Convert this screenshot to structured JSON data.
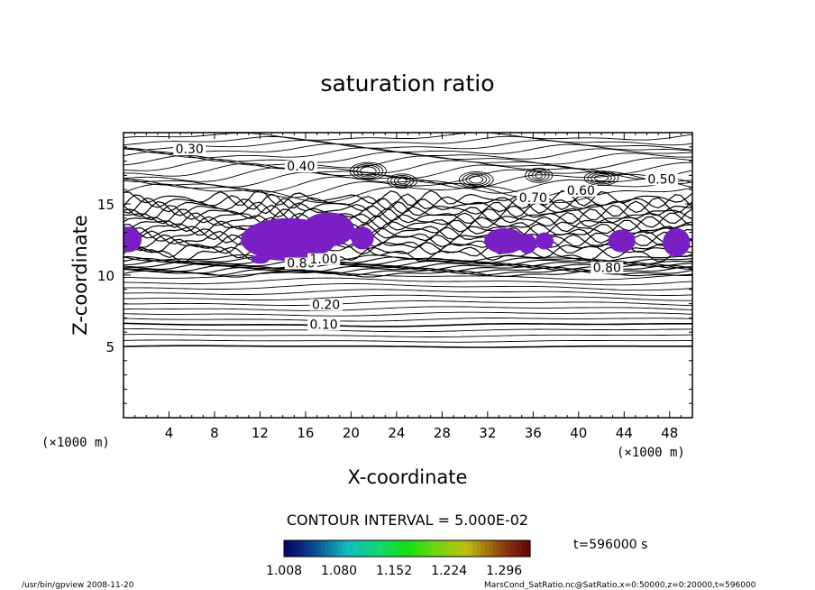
{
  "chart_data": {
    "type": "contour",
    "title": "saturation ratio",
    "xlabel": "X-coordinate",
    "ylabel": "Z-coordinate",
    "x_unit": "(×1000 m)",
    "y_unit": "(×1000 m)",
    "xlim": [
      0,
      50
    ],
    "ylim": [
      0,
      20
    ],
    "x_ticks": [
      4,
      8,
      12,
      16,
      20,
      24,
      28,
      32,
      36,
      40,
      44,
      48
    ],
    "y_ticks": [
      5,
      10,
      15
    ],
    "contour_interval_text": "CONTOUR INTERVAL = 5.000E-02",
    "contour_labels": [
      {
        "text": "0.30",
        "x": 5.8,
        "z": 18.6
      },
      {
        "text": "0.40",
        "x": 15.6,
        "z": 17.4
      },
      {
        "text": "0.50",
        "x": 47.3,
        "z": 16.5
      },
      {
        "text": "0.60",
        "x": 40.2,
        "z": 15.7
      },
      {
        "text": "0.70",
        "x": 36.0,
        "z": 15.2
      },
      {
        "text": "0.80",
        "x": 15.6,
        "z": 10.6
      },
      {
        "text": "0.80",
        "x": 42.5,
        "z": 10.3
      },
      {
        "text": "1.00",
        "x": 17.6,
        "z": 10.9
      },
      {
        "text": "0.20",
        "x": 17.8,
        "z": 7.7
      },
      {
        "text": "0.10",
        "x": 17.6,
        "z": 6.3
      }
    ],
    "supersaturated_regions_note": "shaded where ratio > 1.008",
    "colorbar": {
      "ticks": [
        "1.008",
        "1.080",
        "1.152",
        "1.224",
        "1.296"
      ],
      "range": [
        1.008,
        1.33
      ]
    },
    "time_label": "t=596000 s"
  },
  "footer": {
    "left": "/usr/bin/gpview   2008-11-20",
    "right": "MarsCond_SatRatio.nc@SatRatio,x=0:50000,z=0:20000,t=596000"
  },
  "colors": {
    "shade": "#7a1fc4",
    "line": "#000000"
  }
}
